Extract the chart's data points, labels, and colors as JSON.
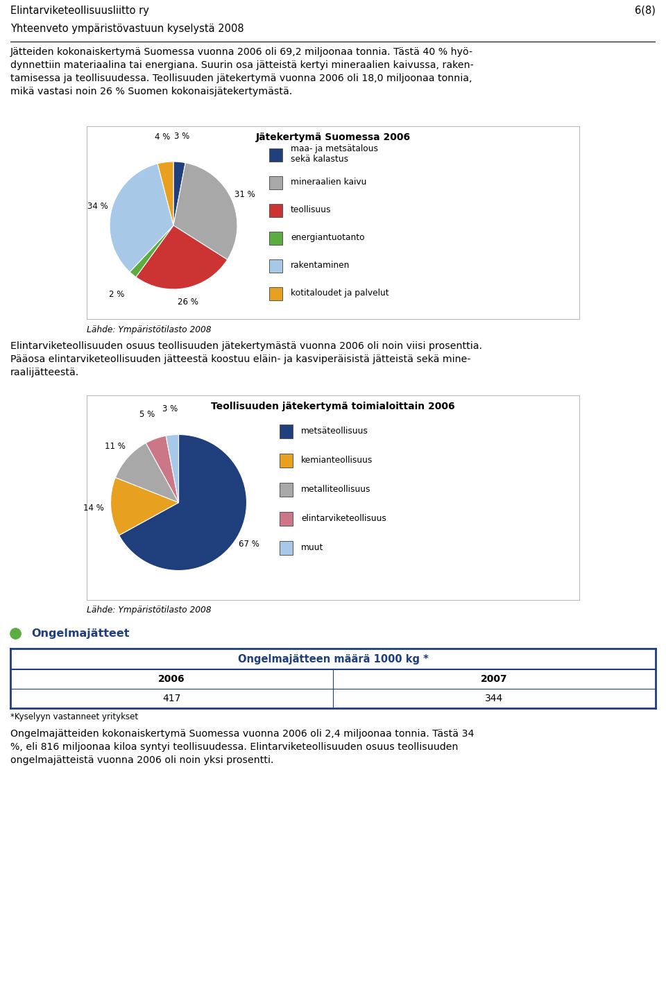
{
  "header_line1": "Elintarviketeollisuusliitto ry",
  "header_line2": "Yhteenveto ympäristövastuun kyselystä 2008",
  "header_page": "6(8)",
  "para1": "Jätteiden kokonaiskertymä Suomessa vuonna 2006 oli 69,2 miljoonaa tonnia. Tästä 40 % hyö-\ndynnettiin materiaalina tai energiana. Suurin osa jätteistä kertyi mineraalien kaivussa, raken-\ntamisessa ja teollisuudessa. Teollisuuden jätekertymä vuonna 2006 oli 18,0 miljoonaa tonnia,\nmikä vastasi noin 26 % Suomen kokonaisjätekertymästä.",
  "chart1_title": "Jätekertymä Suomessa 2006",
  "chart1_values": [
    3,
    31,
    26,
    2,
    34,
    4
  ],
  "chart1_colors": [
    "#1F3E7C",
    "#A8A8A8",
    "#CC3333",
    "#5BAD3F",
    "#A8C8E8",
    "#E8A020"
  ],
  "chart1_legend": [
    "maa- ja metsätalous\nsekä kalastus",
    "mineraalien kaivu",
    "teollisuus",
    "energiantuotanto",
    "rakentaminen",
    "kotitaloudet ja palvelut"
  ],
  "chart1_legend_colors": [
    "#1F3E7C",
    "#A8A8A8",
    "#CC3333",
    "#5BAD3F",
    "#A8C8E8",
    "#E8A020"
  ],
  "chart1_pct_labels": [
    "3 %",
    "31 %",
    "26 %",
    "2 %",
    "34 %",
    "4 %"
  ],
  "chart1_pct_offsets": [
    1.4,
    1.22,
    1.22,
    1.4,
    1.22,
    1.4
  ],
  "source1": "Lähde: Ympäristötilasto 2008",
  "para2": "Elintarviketeollisuuden osuus teollisuuden jätekertymästä vuonna 2006 oli noin viisi prosenttia.\nPääosa elintarviketeollisuuden jätteestä koostuu eläin- ja kasviperäisistä jätteistä sekä mine-\nraalijätteestä.",
  "chart2_title": "Teollisuuden jätekertymä toimialoittain 2006",
  "chart2_values": [
    67,
    14,
    11,
    5,
    3
  ],
  "chart2_colors": [
    "#1F3E7C",
    "#E8A020",
    "#A8A8A8",
    "#CC7788",
    "#A8C8E8"
  ],
  "chart2_legend": [
    "metsäteollisuus",
    "kemianteollisuus",
    "metalliteollisuus",
    "elintarviketeollisuus",
    "muut"
  ],
  "chart2_legend_colors": [
    "#1F3E7C",
    "#E8A020",
    "#A8A8A8",
    "#CC7788",
    "#A8C8E8"
  ],
  "chart2_pct_labels": [
    "67 %",
    "14 %",
    "11 %",
    "5 %",
    "3 %"
  ],
  "chart2_pct_offsets": [
    1.2,
    1.25,
    1.25,
    1.38,
    1.38
  ],
  "source2": "Lähde: Ympäristötilasto 2008",
  "bullet_color": "#5BAD3F",
  "bullet_text": "Ongelmajätteet",
  "table_header": "Ongelmajätteen määrä 1000 kg *",
  "table_col1": "2006",
  "table_col2": "2007",
  "table_val1": "417",
  "table_val2": "344",
  "table_footnote": "*Kyselyyn vastanneet yritykset",
  "para3": "Ongelmajätteiden kokonaiskertymä Suomessa vuonna 2006 oli 2,4 miljoonaa tonnia. Tästä 34\n%, eli 816 miljoonaa kiloa syntyi teollisuudessa. Elintarviketeollisuuden osuus teollisuuden\nongelmajätteistä vuonna 2006 oli noin yksi prosentti.",
  "bg_color": "#FFFFFF",
  "text_color": "#000000",
  "header_color": "#1F3E7C",
  "table_header_color": "#1F3E7C",
  "table_border_color": "#1F3E7C"
}
